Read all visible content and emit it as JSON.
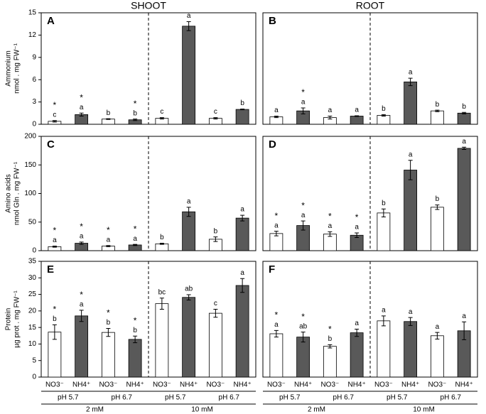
{
  "headers": [
    "SHOOT",
    "ROOT"
  ],
  "x_axis": {
    "categories": [
      "NO3⁻",
      "NH4⁺",
      "NO3⁻",
      "NH4⁺",
      "NO3⁻",
      "NH4⁺",
      "NO3⁻",
      "NH4⁺"
    ],
    "groups": [
      "pH 5.7",
      "pH 6.7",
      "pH 5.7",
      "pH 6.7"
    ],
    "supergroups": [
      "2 mM",
      "10 mM"
    ]
  },
  "chart_data": [
    {
      "type": "bar",
      "title": "A",
      "ylabel": [
        "Ammonium",
        "nmol . mg FW⁻¹"
      ],
      "values": [
        0.4,
        1.3,
        0.7,
        0.6,
        0.8,
        13.2,
        0.8,
        2.0
      ],
      "errors": [
        0.1,
        0.2,
        0.05,
        0.1,
        0.1,
        0.6,
        0.1,
        0.05
      ],
      "letters": [
        "c",
        "a",
        "b",
        "b",
        "c",
        "a",
        "c",
        "b"
      ],
      "stars": [
        "*",
        "*",
        null,
        "*",
        null,
        null,
        null,
        null
      ],
      "colors": [
        "#ffffff",
        "#595959",
        "#ffffff",
        "#595959",
        "#ffffff",
        "#595959",
        "#ffffff",
        "#595959"
      ],
      "ylim": [
        0,
        15
      ],
      "yticks": [
        0,
        3,
        6,
        9,
        12,
        15
      ]
    },
    {
      "type": "bar",
      "title": "B",
      "values": [
        1.0,
        1.8,
        0.9,
        1.1,
        1.2,
        5.7,
        1.8,
        1.5
      ],
      "errors": [
        0.1,
        0.4,
        0.2,
        0.05,
        0.1,
        0.5,
        0.1,
        0.1
      ],
      "letters": [
        "a",
        "a",
        "a",
        "a",
        "b",
        "a",
        "b",
        "b"
      ],
      "stars": [
        null,
        "*",
        null,
        null,
        null,
        null,
        null,
        null
      ],
      "colors": [
        "#ffffff",
        "#595959",
        "#ffffff",
        "#595959",
        "#ffffff",
        "#595959",
        "#ffffff",
        "#595959"
      ],
      "ylim": [
        0,
        15
      ]
    },
    {
      "type": "bar",
      "title": "C",
      "ylabel": [
        "Amino acids",
        "nmol Gln . mg FW⁻¹"
      ],
      "values": [
        7,
        13,
        8,
        10,
        12,
        68,
        20,
        57
      ],
      "errors": [
        1,
        2,
        1,
        1,
        1,
        8,
        4,
        5
      ],
      "letters": [
        "a",
        "a",
        "a",
        "a",
        "b",
        "a",
        "b",
        "a"
      ],
      "stars": [
        "*",
        "*",
        "*",
        "*",
        null,
        null,
        null,
        null
      ],
      "colors": [
        "#ffffff",
        "#595959",
        "#ffffff",
        "#595959",
        "#ffffff",
        "#595959",
        "#ffffff",
        "#595959"
      ],
      "ylim": [
        0,
        200
      ],
      "yticks": [
        0,
        50,
        100,
        150,
        200
      ]
    },
    {
      "type": "bar",
      "title": "D",
      "values": [
        30,
        44,
        29,
        27,
        66,
        141,
        76,
        179
      ],
      "errors": [
        4,
        8,
        4,
        4,
        7,
        17,
        4,
        2
      ],
      "letters": [
        "a",
        "a",
        "a",
        "a",
        "b",
        "a",
        "b",
        "a"
      ],
      "stars": [
        "*",
        "*",
        "*",
        "*",
        null,
        null,
        null,
        null
      ],
      "colors": [
        "#ffffff",
        "#595959",
        "#ffffff",
        "#595959",
        "#ffffff",
        "#595959",
        "#ffffff",
        "#595959"
      ],
      "ylim": [
        0,
        200
      ]
    },
    {
      "type": "bar",
      "title": "E",
      "ylabel": [
        "Protein",
        "µg prot . mg FW⁻¹"
      ],
      "values": [
        13.6,
        18.5,
        13.5,
        11.4,
        22.2,
        24.1,
        19.3,
        27.7
      ],
      "errors": [
        2.2,
        1.7,
        1.2,
        1.0,
        1.7,
        0.8,
        1.2,
        2.1
      ],
      "letters": [
        "b",
        "a",
        "b",
        "b",
        "bc",
        "ab",
        "c",
        "a"
      ],
      "stars": [
        "*",
        "*",
        "*",
        "*",
        null,
        null,
        null,
        null
      ],
      "colors": [
        "#ffffff",
        "#595959",
        "#ffffff",
        "#595959",
        "#ffffff",
        "#595959",
        "#ffffff",
        "#595959"
      ],
      "ylim": [
        0,
        35
      ],
      "yticks": [
        0,
        5,
        10,
        15,
        20,
        25,
        30,
        35
      ]
    },
    {
      "type": "bar",
      "title": "F",
      "values": [
        13.1,
        12.1,
        9.3,
        13.4,
        17.0,
        16.8,
        12.5,
        14.0
      ],
      "errors": [
        1.0,
        1.5,
        0.5,
        1.1,
        1.5,
        1.2,
        1.0,
        2.7
      ],
      "letters": [
        "a",
        "ab",
        "b",
        "a",
        "a",
        "a",
        "a",
        "a"
      ],
      "stars": [
        "*",
        "*",
        "*",
        null,
        null,
        null,
        null,
        null
      ],
      "colors": [
        "#ffffff",
        "#595959",
        "#ffffff",
        "#595959",
        "#ffffff",
        "#595959",
        "#ffffff",
        "#595959"
      ],
      "ylim": [
        0,
        35
      ]
    }
  ]
}
